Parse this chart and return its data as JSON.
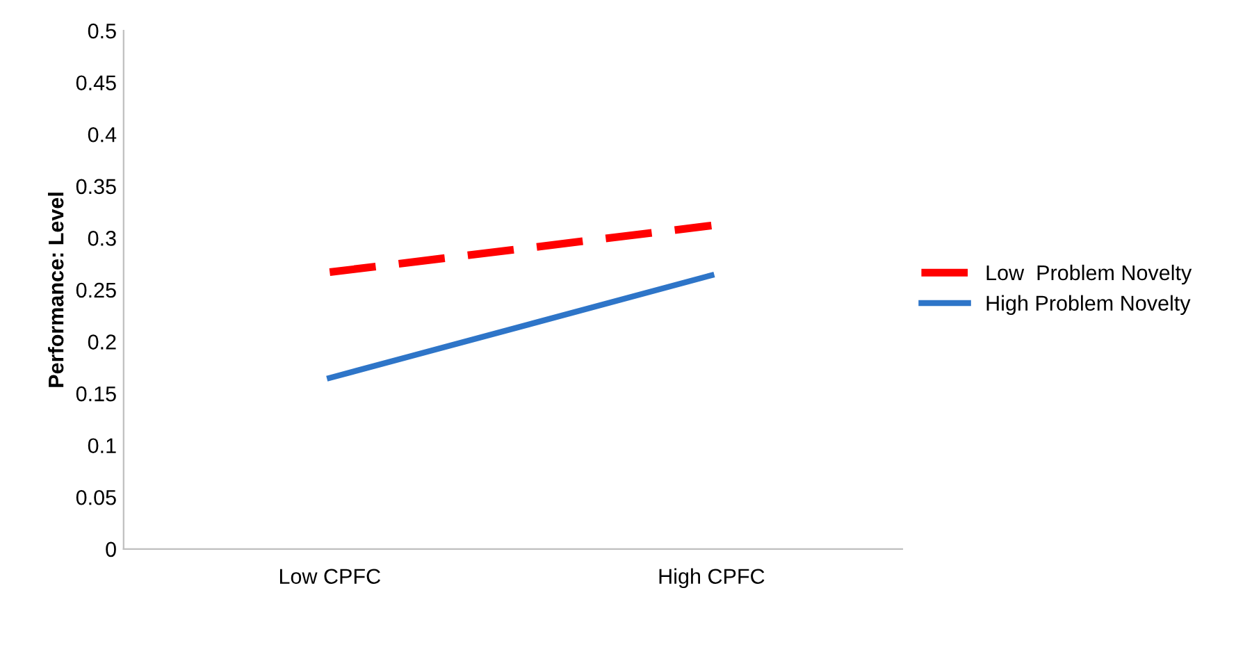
{
  "chart_data": {
    "type": "line",
    "ylabel": "Performance: Level",
    "categories": [
      "Low CPFC",
      "High CPFC"
    ],
    "series": [
      {
        "name": "Low  Problem Novelty",
        "color": "#ff0000",
        "values": [
          0.267,
          0.312
        ],
        "line_style": "dashed"
      },
      {
        "name": "High Problem Novelty",
        "color": "#2e75c8",
        "values": [
          0.165,
          0.264
        ],
        "line_style": "solid"
      }
    ],
    "ylim": [
      0,
      0.5
    ],
    "yticks": [
      0,
      0.05,
      0.1,
      0.15,
      0.2,
      0.25,
      0.3,
      0.35,
      0.4,
      0.45,
      0.5
    ],
    "grid": false,
    "legend": "right",
    "marker": "none"
  }
}
